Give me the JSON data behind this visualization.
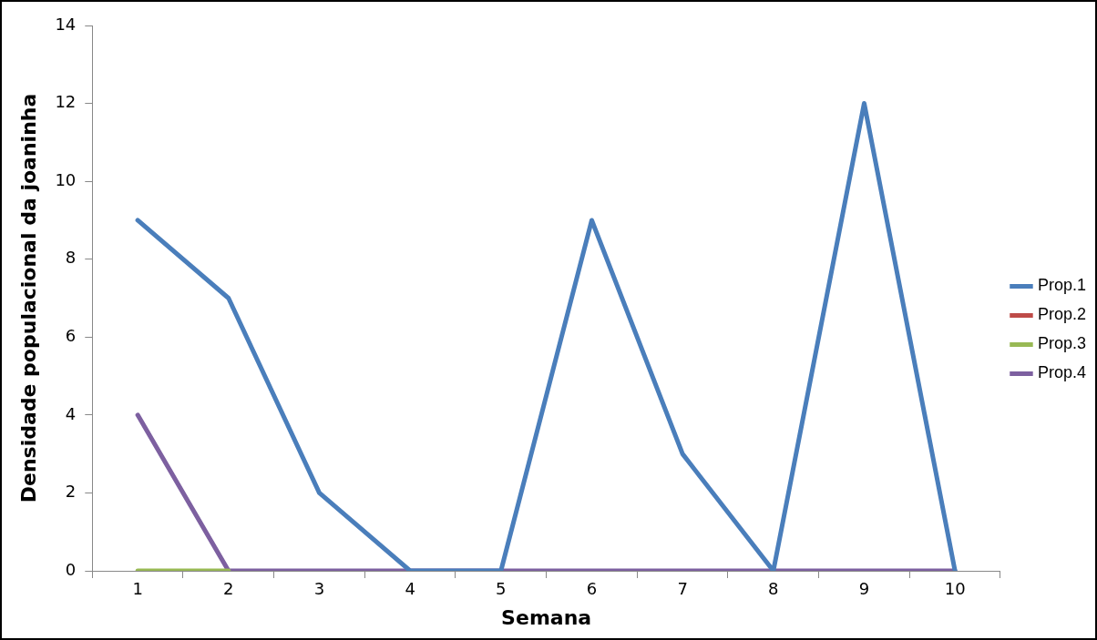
{
  "chart_data": {
    "type": "line",
    "xlabel": "Semana",
    "ylabel": "Densidade populacional da joaninha",
    "categories": [
      "1",
      "2",
      "3",
      "4",
      "5",
      "6",
      "7",
      "8",
      "9",
      "10"
    ],
    "series": [
      {
        "name": "Prop.1",
        "color": "#4a7ebb",
        "values": [
          9,
          7,
          2,
          0,
          0,
          9,
          3,
          0,
          12,
          0
        ]
      },
      {
        "name": "Prop.2",
        "color": "#be4b48",
        "values": [
          null,
          null,
          null,
          null,
          null,
          null,
          null,
          null,
          null,
          null
        ]
      },
      {
        "name": "Prop.3",
        "color": "#98b954",
        "values": [
          0,
          0,
          null,
          null,
          null,
          null,
          null,
          null,
          null,
          null
        ]
      },
      {
        "name": "Prop.4",
        "color": "#7d60a0",
        "values": [
          4,
          0,
          0,
          0,
          0,
          0,
          0,
          0,
          0,
          0
        ]
      }
    ],
    "ylim": [
      0,
      14
    ],
    "yticks": [
      0,
      2,
      4,
      6,
      8,
      10,
      12,
      14
    ],
    "grid": false,
    "legend": "right",
    "marker": "none",
    "line_style": "solid"
  }
}
